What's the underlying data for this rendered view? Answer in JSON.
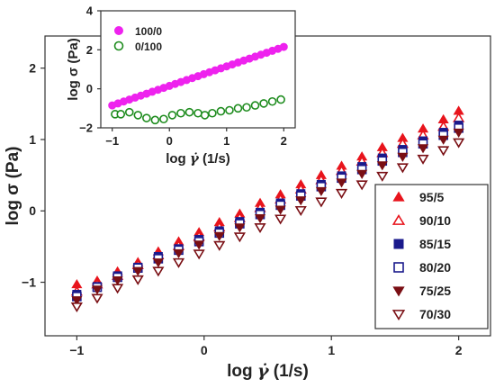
{
  "chart_data": [
    {
      "type": "scatter",
      "xlabel_prefix": "log ",
      "xlabel_symbol": "γ̇",
      "xlabel_unit": " (1/s)",
      "ylabel": "log σ (Pa)",
      "xlim": [
        -1.25,
        2.25
      ],
      "ylim": [
        -1.75,
        2.45
      ],
      "xticks": [
        -1,
        0,
        1,
        2
      ],
      "xtick_labels": [
        "−1",
        "0",
        "1",
        "2"
      ],
      "yticks": [
        -1,
        0,
        1,
        2
      ],
      "ytick_labels": [
        "−1",
        "0",
        "1",
        "2"
      ],
      "grid": false,
      "legend_position": "lower-right",
      "x": [
        -1.0,
        -0.84,
        -0.68,
        -0.52,
        -0.36,
        -0.2,
        -0.04,
        0.12,
        0.28,
        0.44,
        0.6,
        0.76,
        0.92,
        1.08,
        1.24,
        1.4,
        1.56,
        1.72,
        1.88,
        2.0
      ],
      "series": [
        {
          "name": "95/5",
          "marker": "triangle-up",
          "fill": "filled",
          "color": "#e8141c",
          "values": [
            -1.03,
            -0.98,
            -0.85,
            -0.72,
            -0.57,
            -0.43,
            -0.3,
            -0.16,
            -0.04,
            0.11,
            0.23,
            0.37,
            0.5,
            0.63,
            0.76,
            0.89,
            1.02,
            1.15,
            1.28,
            1.4
          ]
        },
        {
          "name": "90/10",
          "marker": "triangle-up",
          "fill": "open",
          "color": "#e8141c",
          "values": [
            -1.13,
            -1.03,
            -0.91,
            -0.76,
            -0.62,
            -0.49,
            -0.36,
            -0.23,
            -0.1,
            0.04,
            0.16,
            0.3,
            0.43,
            0.56,
            0.69,
            0.81,
            0.94,
            1.06,
            1.18,
            1.3
          ]
        },
        {
          "name": "85/15",
          "marker": "square",
          "fill": "filled",
          "color": "#1a1a8c",
          "values": [
            -1.17,
            -1.06,
            -0.91,
            -0.79,
            -0.64,
            -0.53,
            -0.4,
            -0.28,
            -0.15,
            -0.02,
            0.11,
            0.24,
            0.37,
            0.49,
            0.62,
            0.74,
            0.86,
            0.98,
            1.1,
            1.2
          ]
        },
        {
          "name": "80/20",
          "marker": "square",
          "fill": "open",
          "color": "#1a1a8c",
          "values": [
            -1.2,
            -1.07,
            -0.93,
            -0.8,
            -0.67,
            -0.55,
            -0.43,
            -0.31,
            -0.18,
            -0.05,
            0.08,
            0.21,
            0.34,
            0.46,
            0.58,
            0.7,
            0.82,
            0.94,
            1.06,
            1.16
          ]
        },
        {
          "name": "75/25",
          "marker": "triangle-down",
          "fill": "filled",
          "color": "#7a0f14",
          "values": [
            -1.25,
            -1.1,
            -0.97,
            -0.84,
            -0.72,
            -0.59,
            -0.47,
            -0.35,
            -0.23,
            -0.1,
            0.02,
            0.15,
            0.28,
            0.4,
            0.52,
            0.64,
            0.76,
            0.88,
            1.0,
            1.1
          ]
        },
        {
          "name": "70/30",
          "marker": "triangle-down",
          "fill": "open",
          "color": "#7a0f14",
          "values": [
            -1.34,
            -1.22,
            -1.08,
            -0.96,
            -0.84,
            -0.72,
            -0.6,
            -0.48,
            -0.36,
            -0.23,
            -0.11,
            0.01,
            0.13,
            0.25,
            0.37,
            0.49,
            0.61,
            0.73,
            0.85,
            0.96
          ]
        }
      ]
    },
    {
      "type": "scatter",
      "xlabel_prefix": "log ",
      "xlabel_symbol": "γ̇",
      "xlabel_unit": " (1/s)",
      "ylabel": "log σ (Pa)",
      "xlim": [
        -1.2,
        2.2
      ],
      "ylim": [
        -2,
        4
      ],
      "xticks": [
        -1,
        0,
        1,
        2
      ],
      "xtick_labels": [
        "−1",
        "0",
        "1",
        "2"
      ],
      "yticks": [
        -2,
        0,
        2,
        4
      ],
      "ytick_labels": [
        "−2",
        "0",
        "2",
        "4"
      ],
      "grid": false,
      "legend_position": "top-left",
      "series": [
        {
          "name": "100/0",
          "marker": "circle",
          "fill": "filled",
          "color": "#ee22ee",
          "x": [
            -1.0,
            -0.9,
            -0.8,
            -0.7,
            -0.6,
            -0.5,
            -0.4,
            -0.3,
            -0.2,
            -0.1,
            0.0,
            0.1,
            0.2,
            0.3,
            0.4,
            0.5,
            0.6,
            0.7,
            0.8,
            0.9,
            1.0,
            1.1,
            1.2,
            1.3,
            1.4,
            1.5,
            1.6,
            1.7,
            1.8,
            1.9,
            2.0
          ],
          "values": [
            -0.85,
            -0.75,
            -0.65,
            -0.55,
            -0.45,
            -0.35,
            -0.25,
            -0.15,
            -0.05,
            0.05,
            0.15,
            0.25,
            0.35,
            0.45,
            0.55,
            0.65,
            0.75,
            0.85,
            0.95,
            1.05,
            1.15,
            1.25,
            1.35,
            1.45,
            1.55,
            1.65,
            1.75,
            1.85,
            1.95,
            2.05,
            2.15
          ]
        },
        {
          "name": "0/100",
          "marker": "circle",
          "fill": "open",
          "color": "#1e8c1e",
          "x": [
            -0.95,
            -0.85,
            -0.7,
            -0.55,
            -0.4,
            -0.25,
            -0.1,
            0.05,
            0.2,
            0.35,
            0.5,
            0.62,
            0.75,
            0.9,
            1.05,
            1.2,
            1.35,
            1.5,
            1.65,
            1.8,
            1.95
          ],
          "values": [
            -1.3,
            -1.3,
            -1.2,
            -1.35,
            -1.5,
            -1.6,
            -1.55,
            -1.35,
            -1.25,
            -1.2,
            -1.25,
            -1.35,
            -1.25,
            -1.15,
            -1.1,
            -1.0,
            -0.95,
            -0.85,
            -0.75,
            -0.65,
            -0.55
          ]
        }
      ]
    }
  ]
}
